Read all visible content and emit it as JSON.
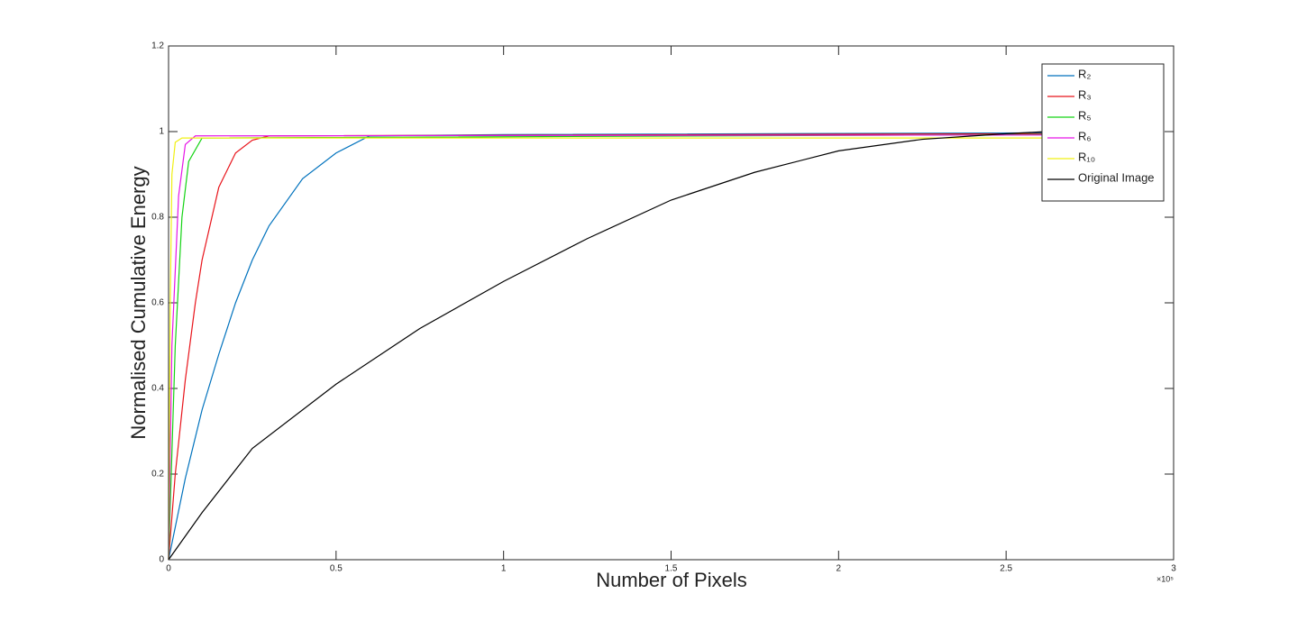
{
  "chart_data": {
    "type": "line",
    "xlabel": "Number of Pixels",
    "ylabel": "Normalised Cumulative Energy",
    "x_exponent_label": "×10⁵",
    "xlim": [
      0,
      3
    ],
    "xticks": [
      0,
      0.5,
      1,
      1.5,
      2,
      2.5,
      3
    ],
    "ylim": [
      0,
      1.2
    ],
    "yticks": [
      0,
      0.2,
      0.4,
      0.6,
      0.8,
      1,
      1.2
    ],
    "legend": "upper right",
    "grid": false,
    "box": true,
    "series": [
      {
        "name": "R₂",
        "color": "#0072bd",
        "x": [
          0,
          0.05,
          0.1,
          0.15,
          0.2,
          0.25,
          0.3,
          0.4,
          0.5,
          0.6,
          1,
          2.62
        ],
        "values": [
          0,
          0.19,
          0.35,
          0.48,
          0.6,
          0.7,
          0.78,
          0.89,
          0.95,
          0.99,
          0.993,
          0.997
        ]
      },
      {
        "name": "R₃",
        "color": "#e8141b",
        "x": [
          0,
          0.02,
          0.05,
          0.08,
          0.1,
          0.15,
          0.2,
          0.25,
          0.3,
          2.62
        ],
        "values": [
          0,
          0.2,
          0.42,
          0.6,
          0.7,
          0.87,
          0.95,
          0.98,
          0.99,
          0.995
        ]
      },
      {
        "name": "R₅",
        "color": "#14d314",
        "x": [
          0,
          0.02,
          0.04,
          0.06,
          0.1,
          2.62
        ],
        "values": [
          0,
          0.5,
          0.8,
          0.93,
          0.985,
          0.993
        ]
      },
      {
        "name": "R₆",
        "color": "#e614e6",
        "x": [
          0,
          0.01,
          0.03,
          0.05,
          0.08,
          2.62
        ],
        "values": [
          0,
          0.5,
          0.85,
          0.97,
          0.99,
          0.992
        ]
      },
      {
        "name": "R₁₀",
        "color": "#f0f014",
        "x": [
          0,
          0.005,
          0.01,
          0.02,
          0.04,
          2.62
        ],
        "values": [
          0,
          0.6,
          0.9,
          0.975,
          0.985,
          0.985
        ]
      },
      {
        "name": "Original Image",
        "color": "#000000",
        "x": [
          0,
          0.1,
          0.25,
          0.5,
          0.75,
          1,
          1.25,
          1.5,
          1.75,
          2,
          2.25,
          2.5,
          2.62
        ],
        "values": [
          0,
          0.11,
          0.26,
          0.41,
          0.54,
          0.65,
          0.75,
          0.84,
          0.905,
          0.955,
          0.982,
          0.995,
          1.0
        ]
      }
    ]
  }
}
